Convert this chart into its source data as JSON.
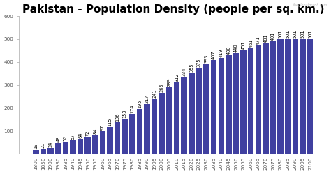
{
  "title": "Pakistan - Population Density (people per sq. km.)",
  "categories": [
    "1800",
    "1850",
    "1900",
    "1930",
    "1935",
    "1940",
    "1945",
    "1950",
    "1955",
    "1960",
    "1965",
    "1970",
    "1975",
    "1980",
    "1985",
    "1990",
    "1995",
    "2000",
    "2005",
    "2010",
    "2015",
    "2020",
    "2025",
    "2030",
    "2035",
    "2040",
    "2045",
    "2050",
    "2055",
    "2060",
    "2065",
    "2070",
    "2075",
    "2080",
    "2085",
    "2090",
    "2095",
    "2100"
  ],
  "values": [
    19,
    21,
    24,
    48,
    52,
    57,
    64,
    72,
    84,
    97,
    115,
    136,
    153,
    174,
    195,
    217,
    241,
    265,
    289,
    312,
    334,
    355,
    375,
    393,
    407,
    419,
    430,
    440,
    451,
    461,
    471,
    481,
    491,
    501,
    501,
    501,
    501,
    501
  ],
  "bar_color": "#4040a0",
  "background_color": "#ffffff",
  "plot_bg_color": "#ffffff",
  "ylim": [
    0,
    600
  ],
  "yticks": [
    0,
    100,
    200,
    300,
    400,
    500,
    600
  ],
  "title_fontsize": 11,
  "label_fontsize": 4.8,
  "tick_fontsize": 5.2,
  "watermark": "theglobalgraph.com"
}
